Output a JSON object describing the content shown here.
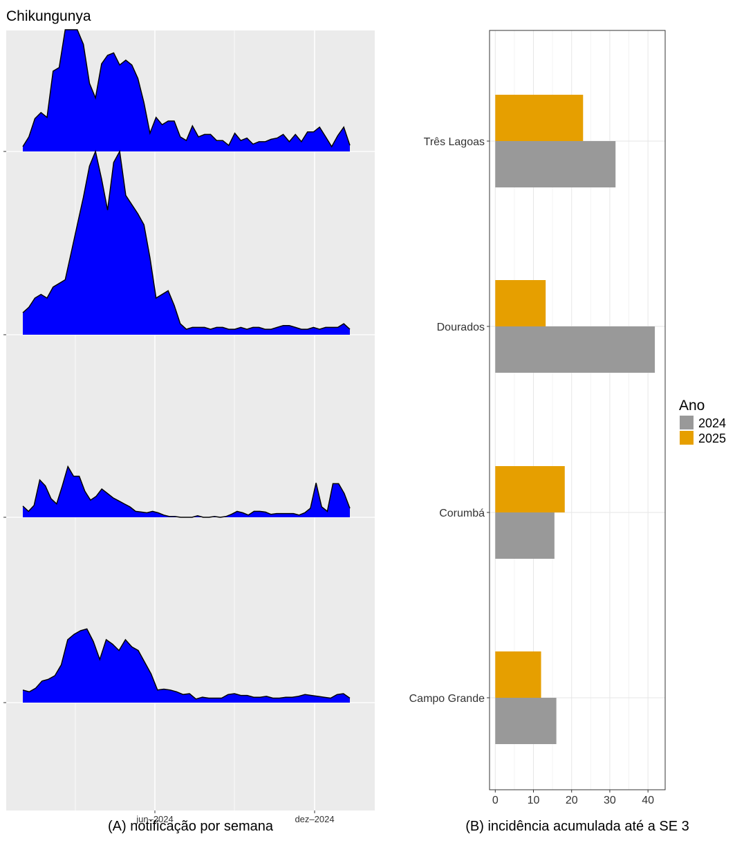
{
  "title": "Chikungunya",
  "colors": {
    "ridge_fill": "#0000ff",
    "ridge_stroke": "#000000",
    "panel_bg": "#ebebeb",
    "grid": "#ffffff",
    "bar_2024": "#999999",
    "bar_2025": "#e69f00"
  },
  "chart_data": [
    {
      "type": "area",
      "subtype": "ridgeline",
      "caption": "(A) notificação por semana",
      "xlabel": "",
      "ylabel": "",
      "x_ticks": [
        "jun–2024",
        "dez–2024"
      ],
      "x_range_weeks": [
        0,
        51
      ],
      "grid": true,
      "note": "Top to bottom: Três Lagoas, Dourados, Corumbá, Campo Grande; y values are relative (0–100 of ridge peak).",
      "series": [
        {
          "values": [
            4,
            12,
            27,
            32,
            28,
            66,
            69,
            100,
            100,
            100,
            88,
            56,
            44,
            72,
            79,
            81,
            71,
            75,
            71,
            60,
            40,
            15,
            28,
            22,
            25,
            25,
            12,
            9,
            21,
            12,
            14,
            14,
            9,
            9,
            5,
            15,
            9,
            11,
            6,
            8,
            8,
            10,
            11,
            14,
            8,
            14,
            8,
            16,
            16,
            20,
            12,
            4,
            13,
            20,
            5
          ]
        },
        {
          "values": [
            12,
            15,
            20,
            22,
            20,
            26,
            28,
            30,
            45,
            60,
            75,
            92,
            100,
            85,
            68,
            94,
            100,
            76,
            71,
            66,
            60,
            42,
            20,
            22,
            24,
            16,
            6,
            3,
            4,
            4,
            4,
            3,
            4,
            4,
            3,
            3,
            4,
            3,
            4,
            4,
            3,
            3,
            4,
            5,
            5,
            4,
            3,
            3,
            4,
            3,
            4,
            4,
            4,
            6,
            3
          ]
        },
        {
          "values": [
            15,
            8,
            16,
            50,
            42,
            25,
            18,
            42,
            68,
            55,
            55,
            35,
            23,
            28,
            38,
            32,
            26,
            22,
            18,
            14,
            8,
            7,
            6,
            8,
            6,
            3,
            1,
            1,
            0,
            0,
            0,
            2,
            0,
            0,
            1,
            0,
            1,
            4,
            8,
            6,
            3,
            8,
            8,
            7,
            4,
            5,
            5,
            5,
            5,
            3,
            6,
            12,
            46,
            14,
            8,
            45,
            45,
            32,
            12
          ]
        },
        {
          "values": [
            14,
            12,
            16,
            24,
            26,
            30,
            42,
            70,
            76,
            80,
            82,
            68,
            48,
            70,
            65,
            58,
            70,
            62,
            58,
            45,
            32,
            14,
            15,
            14,
            12,
            9,
            10,
            4,
            6,
            5,
            5,
            5,
            9,
            10,
            8,
            8,
            6,
            6,
            7,
            5,
            5,
            6,
            6,
            7,
            9,
            8,
            7,
            6,
            5,
            9,
            10,
            5
          ]
        }
      ]
    },
    {
      "type": "bar",
      "orientation": "horizontal",
      "caption": "(B) incidência acumulada até a SE 3",
      "categories": [
        "Três Lagoas",
        "Dourados",
        "Corumbá",
        "Campo Grande"
      ],
      "series": [
        {
          "name": "2024",
          "values": [
            31.5,
            41.8,
            15.5,
            16.0
          ]
        },
        {
          "name": "2025",
          "values": [
            23.0,
            13.2,
            18.2,
            12.0
          ]
        }
      ],
      "x_ticks": [
        0,
        10,
        20,
        30,
        40
      ],
      "xlim": [
        -1.5,
        44.5
      ],
      "legend_title": "Ano",
      "legend_position": "right",
      "grid": true
    }
  ]
}
